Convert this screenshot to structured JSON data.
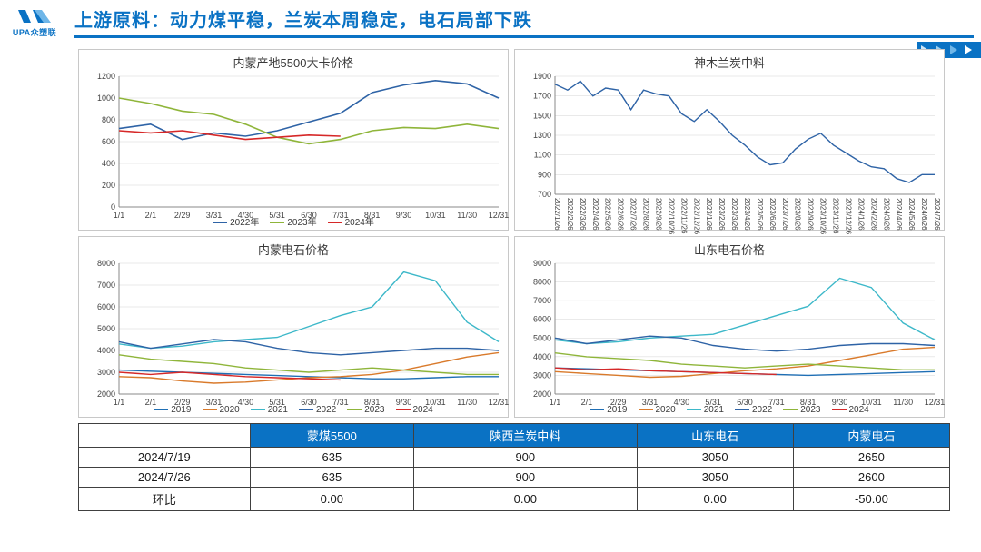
{
  "page": {
    "logo_text": "UPA众塑联",
    "title": "上游原料：动力煤平稳，兰炭本周稳定，电石局部下跌"
  },
  "colors": {
    "brand": "#0a72c4",
    "axis": "#888888",
    "grid": "#d4d4d4",
    "text": "#3a3a3a",
    "series_2019": "#1f6fb5",
    "series_2020": "#d97a2b",
    "series_2021": "#3db8c9",
    "series_2022": "#2e63a6",
    "series_2023": "#8fb53a",
    "series_2024": "#d62828"
  },
  "chart1": {
    "type": "line",
    "title": "内蒙产地5500大卡价格",
    "x_ticks": [
      "1/1",
      "2/1",
      "2/29",
      "3/31",
      "4/30",
      "5/31",
      "6/30",
      "7/31",
      "8/31",
      "9/30",
      "10/31",
      "11/30",
      "12/31"
    ],
    "ylim": [
      0,
      1200
    ],
    "ytick_step": 200,
    "title_fontsize": 13,
    "tick_fontsize": 9,
    "line_width": 1.6,
    "grid_color": "#d4d4d4",
    "legend": [
      "2022年",
      "2023年",
      "2024年"
    ],
    "legend_colors": [
      "#2e63a6",
      "#8fb53a",
      "#d62828"
    ],
    "series": [
      {
        "name": "2022",
        "color": "#2e63a6",
        "values": [
          720,
          760,
          620,
          680,
          650,
          700,
          780,
          860,
          1050,
          1120,
          1160,
          1130,
          1000
        ]
      },
      {
        "name": "2023",
        "color": "#8fb53a",
        "values": [
          1000,
          950,
          880,
          850,
          760,
          640,
          580,
          620,
          700,
          730,
          720,
          760,
          720
        ]
      },
      {
        "name": "2024",
        "color": "#d62828",
        "values": [
          700,
          680,
          700,
          660,
          620,
          640,
          660,
          650,
          null,
          null,
          null,
          null,
          null
        ]
      }
    ]
  },
  "chart2": {
    "type": "line",
    "title": "神木兰炭中料",
    "x_ticks": [
      "2022/1/26",
      "2022/2/26",
      "2022/3/26",
      "2022/4/26",
      "2022/5/26",
      "2022/6/26",
      "2022/7/26",
      "2022/8/26",
      "2022/9/26",
      "2022/10/26",
      "2022/11/26",
      "2022/12/26",
      "2023/1/26",
      "2023/2/26",
      "2023/3/26",
      "2023/4/26",
      "2023/5/26",
      "2023/6/26",
      "2023/7/26",
      "2023/8/26",
      "2023/9/26",
      "2023/10/26",
      "2023/11/26",
      "2023/12/26",
      "2024/1/26",
      "2024/2/26",
      "2024/3/26",
      "2024/4/26",
      "2024/5/26",
      "2024/6/26",
      "2024/7/26"
    ],
    "ylim": [
      700,
      1900
    ],
    "ytick_step": 200,
    "title_fontsize": 13,
    "tick_fontsize": 8,
    "line_width": 1.4,
    "grid_color": "#d4d4d4",
    "x_tick_rotation": 90,
    "legend": [],
    "legend_colors": [],
    "series": [
      {
        "name": "price",
        "color": "#2e63a6",
        "values": [
          1820,
          1760,
          1850,
          1700,
          1780,
          1760,
          1560,
          1760,
          1720,
          1700,
          1520,
          1440,
          1560,
          1440,
          1300,
          1200,
          1080,
          1000,
          1020,
          1160,
          1260,
          1320,
          1200,
          1120,
          1040,
          980,
          960,
          860,
          820,
          900,
          900
        ]
      }
    ]
  },
  "chart3": {
    "type": "line",
    "title": "内蒙电石价格",
    "x_ticks": [
      "1/1",
      "2/1",
      "2/29",
      "3/31",
      "4/30",
      "5/31",
      "6/30",
      "7/31",
      "8/31",
      "9/30",
      "10/31",
      "11/30",
      "12/31"
    ],
    "ylim": [
      2000,
      8000
    ],
    "ytick_step": 1000,
    "title_fontsize": 13,
    "tick_fontsize": 9,
    "line_width": 1.4,
    "grid_color": "#d4d4d4",
    "legend": [
      "2019",
      "2020",
      "2021",
      "2022",
      "2023",
      "2024"
    ],
    "legend_colors": [
      "#1f6fb5",
      "#d97a2b",
      "#3db8c9",
      "#2e63a6",
      "#8fb53a",
      "#d62828"
    ],
    "series": [
      {
        "name": "2019",
        "color": "#1f6fb5",
        "values": [
          3100,
          3050,
          3000,
          2950,
          2900,
          2850,
          2800,
          2750,
          2700,
          2700,
          2750,
          2800,
          2800
        ]
      },
      {
        "name": "2020",
        "color": "#d97a2b",
        "values": [
          2800,
          2750,
          2600,
          2500,
          2550,
          2650,
          2750,
          2800,
          2900,
          3100,
          3400,
          3700,
          3900
        ]
      },
      {
        "name": "2021",
        "color": "#3db8c9",
        "values": [
          4300,
          4100,
          4200,
          4400,
          4500,
          4600,
          5100,
          5600,
          6000,
          7600,
          7200,
          5300,
          4400
        ]
      },
      {
        "name": "2022",
        "color": "#2e63a6",
        "values": [
          4400,
          4100,
          4300,
          4500,
          4400,
          4100,
          3900,
          3800,
          3900,
          4000,
          4100,
          4100,
          4000
        ]
      },
      {
        "name": "2023",
        "color": "#8fb53a",
        "values": [
          3800,
          3600,
          3500,
          3400,
          3200,
          3100,
          3000,
          3100,
          3200,
          3100,
          3000,
          2900,
          2900
        ]
      },
      {
        "name": "2024",
        "color": "#d62828",
        "values": [
          3000,
          2900,
          3000,
          2900,
          2800,
          2750,
          2700,
          2650,
          null,
          null,
          null,
          null,
          null
        ]
      }
    ]
  },
  "chart4": {
    "type": "line",
    "title": "山东电石价格",
    "x_ticks": [
      "1/1",
      "2/1",
      "2/29",
      "3/31",
      "4/30",
      "5/31",
      "6/30",
      "7/31",
      "8/31",
      "9/30",
      "10/31",
      "11/30",
      "12/31"
    ],
    "ylim": [
      2000,
      9000
    ],
    "ytick_step": 1000,
    "title_fontsize": 13,
    "tick_fontsize": 9,
    "line_width": 1.4,
    "grid_color": "#d4d4d4",
    "legend": [
      "2019",
      "2020",
      "2021",
      "2022",
      "2023",
      "2024"
    ],
    "legend_colors": [
      "#1f6fb5",
      "#d97a2b",
      "#3db8c9",
      "#2e63a6",
      "#8fb53a",
      "#d62828"
    ],
    "series": [
      {
        "name": "2019",
        "color": "#1f6fb5",
        "values": [
          3400,
          3350,
          3300,
          3250,
          3200,
          3150,
          3100,
          3050,
          3000,
          3050,
          3100,
          3150,
          3200
        ]
      },
      {
        "name": "2020",
        "color": "#d97a2b",
        "values": [
          3200,
          3100,
          3000,
          2900,
          2950,
          3100,
          3250,
          3350,
          3500,
          3800,
          4100,
          4400,
          4500
        ]
      },
      {
        "name": "2021",
        "color": "#3db8c9",
        "values": [
          4900,
          4700,
          4800,
          5000,
          5100,
          5200,
          5700,
          6200,
          6700,
          8200,
          7700,
          5800,
          4900
        ]
      },
      {
        "name": "2022",
        "color": "#2e63a6",
        "values": [
          5000,
          4700,
          4900,
          5100,
          5000,
          4600,
          4400,
          4300,
          4400,
          4600,
          4700,
          4700,
          4600
        ]
      },
      {
        "name": "2023",
        "color": "#8fb53a",
        "values": [
          4200,
          4000,
          3900,
          3800,
          3600,
          3500,
          3400,
          3500,
          3600,
          3500,
          3400,
          3300,
          3300
        ]
      },
      {
        "name": "2024",
        "color": "#d62828",
        "values": [
          3400,
          3300,
          3350,
          3250,
          3200,
          3150,
          3100,
          3050,
          null,
          null,
          null,
          null,
          null
        ]
      }
    ]
  },
  "table": {
    "columns": [
      "",
      "蒙煤5500",
      "陕西兰炭中料",
      "山东电石",
      "内蒙电石"
    ],
    "rows": [
      [
        "2024/7/19",
        "635",
        "900",
        "3050",
        "2650"
      ],
      [
        "2024/7/26",
        "635",
        "900",
        "3050",
        "2600"
      ],
      [
        "环比",
        "0.00",
        "0.00",
        "0.00",
        "-50.00"
      ]
    ],
    "header_bg": "#0a72c4",
    "header_color": "#ffffff",
    "border": "#404040",
    "font_size": 13
  }
}
